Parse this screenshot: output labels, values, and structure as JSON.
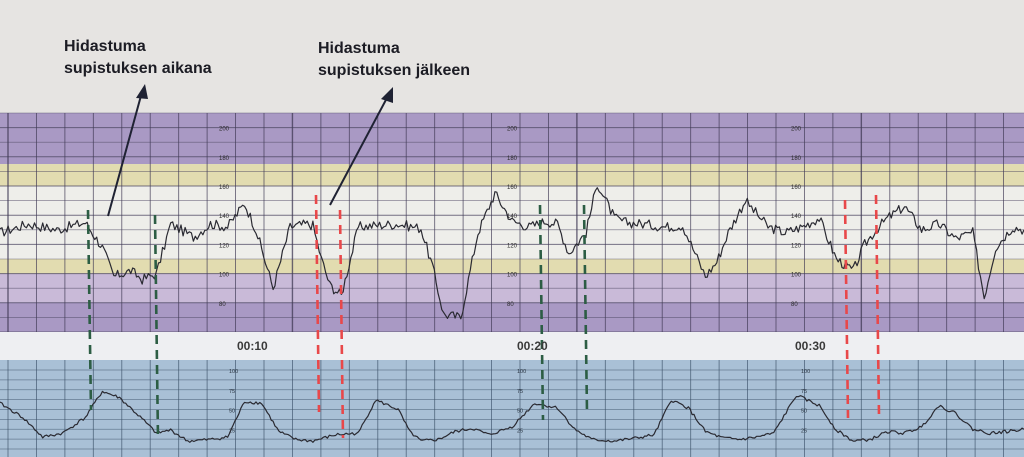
{
  "annotations": [
    {
      "line1": "Hidastuma",
      "line2": "supistuksen aikana"
    },
    {
      "line1": "Hidastuma",
      "line2": "supistuksen jälkeen"
    }
  ],
  "time_labels": [
    "00:10",
    "00:20",
    "00:30"
  ],
  "fhr_scale": [
    "200",
    "180",
    "160",
    "140",
    "120",
    "100",
    "80"
  ],
  "toco_scale": [
    "100",
    "75",
    "50",
    "25"
  ],
  "colors": {
    "band_purple": "#a999c4",
    "band_lavender": "#c9bad8",
    "band_yellow": "#e2dcb0",
    "band_white": "#eeeeea",
    "toco_bg": "#a9c0d6",
    "trace": "#2a2a32",
    "green_marker": "#2c5d44",
    "red_marker": "#e8484a"
  },
  "chart_data": {
    "type": "line",
    "title": "",
    "series": [
      {
        "name": "",
        "unit": "bpm",
        "x": [
          0,
          1,
          2,
          3,
          3.6,
          4,
          4.6,
          5,
          5.5,
          6,
          6.8,
          7.4,
          8,
          8.6,
          9,
          9.6,
          10.2,
          10.8,
          11,
          11.3,
          11.6,
          12,
          12.6,
          13.2,
          14,
          14.8,
          15.2,
          15.6,
          16.2,
          16.8,
          17.4,
          18,
          18.6,
          19.2,
          19.6,
          20,
          20.6,
          21,
          21.6,
          22,
          22.6,
          23.4,
          24,
          24.8,
          25.2,
          25.6,
          26.2,
          27,
          27.6,
          28.2,
          28.8,
          29.4,
          30,
          30.4,
          30.8,
          31.2,
          31.8,
          32.4,
          33,
          33.6,
          34.2,
          34.6,
          35,
          35.6,
          36
        ],
        "y": [
          128,
          134,
          130,
          135,
          118,
          98,
          102,
          96,
          100,
          134,
          125,
          134,
          132,
          148,
          130,
          90,
          132,
          134,
          133,
          110,
          92,
          85,
          132,
          133,
          134,
          131,
          105,
          72,
          70,
          128,
          155,
          136,
          132,
          136,
          134,
          114,
          128,
          162,
          138,
          135,
          134,
          132,
          133,
          98,
          108,
          128,
          150,
          132,
          128,
          132,
          138,
          110,
          102,
          120,
          130,
          138,
          146,
          130,
          134,
          124,
          128,
          84,
          118,
          132,
          130
        ]
      },
      {
        "name": "",
        "unit": "mmHg",
        "x": [
          0,
          0.8,
          1.5,
          2.2,
          3,
          3.6,
          4.2,
          5,
          5.5,
          6,
          6.6,
          7.4,
          8,
          8.6,
          9.2,
          9.8,
          10.4,
          11,
          11.8,
          12.6,
          13.2,
          14,
          14.4,
          14.8,
          15.4,
          16,
          16.6,
          17.2,
          18,
          18.8,
          19.6,
          20.2,
          20.8,
          21.6,
          22.4,
          23,
          23.6,
          24.2,
          24.8,
          25.4,
          26,
          26.6,
          27.2,
          28,
          28.8,
          29.4,
          30,
          30.6,
          31.2,
          31.8,
          32.4,
          33,
          33.6,
          34.2,
          34.8,
          35.4,
          36
        ],
        "y": [
          58,
          40,
          15,
          20,
          40,
          73,
          65,
          38,
          20,
          24,
          10,
          12,
          15,
          60,
          58,
          22,
          12,
          10,
          18,
          20,
          62,
          50,
          22,
          10,
          12,
          22,
          26,
          18,
          28,
          58,
          52,
          25,
          12,
          10,
          14,
          18,
          62,
          52,
          22,
          14,
          12,
          15,
          20,
          68,
          55,
          24,
          10,
          12,
          22,
          20,
          28,
          55,
          45,
          25,
          20,
          22,
          25
        ]
      }
    ],
    "xlim": [
      0,
      36
    ],
    "ylim": [
      [
        60,
        210
      ],
      [
        0,
        100
      ]
    ],
    "grid": true
  }
}
